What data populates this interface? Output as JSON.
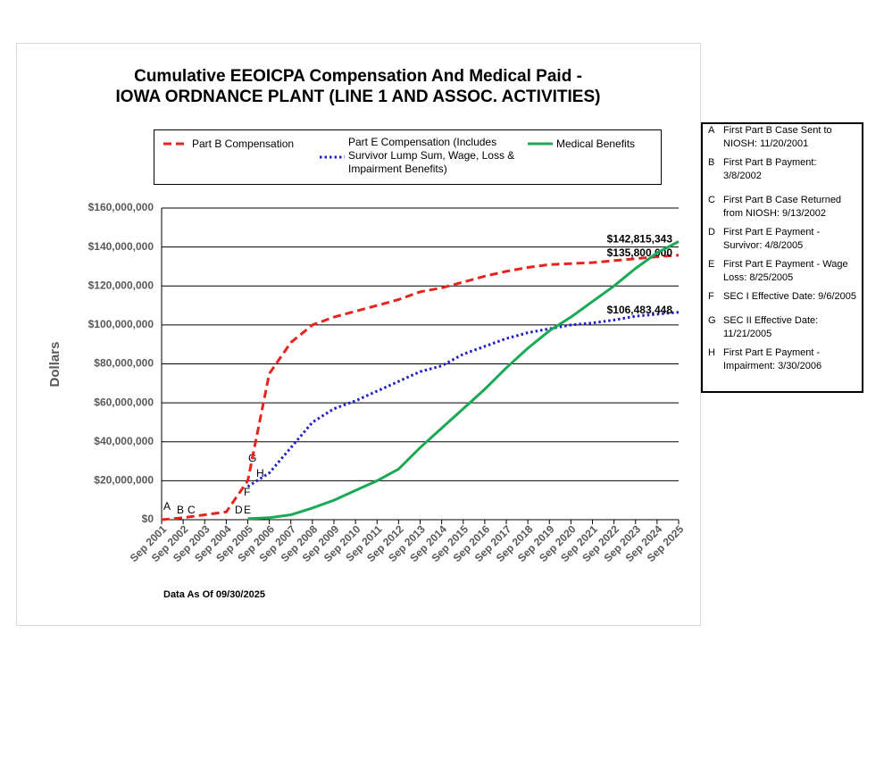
{
  "chart_data": {
    "type": "line",
    "title": "Cumulative EEOICPA Compensation And Medical Paid -",
    "subtitle": "IOWA ORDNANCE PLANT (LINE 1 AND ASSOC. ACTIVITIES)",
    "y_label": "Dollars",
    "footnote": "Data As Of  09/30/2025",
    "categories": [
      "Sep 2001",
      "Sep 2002",
      "Sep 2003",
      "Sep 2004",
      "Sep 2005",
      "Sep 2006",
      "Sep 2007",
      "Sep 2008",
      "Sep 2009",
      "Sep 2010",
      "Sep 2011",
      "Sep 2012",
      "Sep 2013",
      "Sep 2014",
      "Sep 2015",
      "Sep 2016",
      "Sep 2017",
      "Sep 2018",
      "Sep 2019",
      "Sep 2020",
      "Sep 2021",
      "Sep 2022",
      "Sep 2023",
      "Sep 2024",
      "Sep 2025"
    ],
    "ylim": [
      0,
      160000000
    ],
    "yticks": [
      {
        "value": 0,
        "label": "$0"
      },
      {
        "value": 20000000,
        "label": "$20,000,000"
      },
      {
        "value": 40000000,
        "label": "$40,000,000"
      },
      {
        "value": 60000000,
        "label": "$60,000,000"
      },
      {
        "value": 80000000,
        "label": "$80,000,000"
      },
      {
        "value": 100000000,
        "label": "$100,000,000"
      },
      {
        "value": 120000000,
        "label": "$120,000,000"
      },
      {
        "value": 140000000,
        "label": "$140,000,000"
      },
      {
        "value": 160000000,
        "label": "$160,000,000"
      }
    ],
    "grid": true,
    "series": [
      {
        "name": "Part B Compensation",
        "color": "#e8231d",
        "dash": "dashed",
        "values": [
          0,
          1000000,
          2500000,
          4000000,
          20000000,
          75000000,
          91000000,
          100000000,
          104000000,
          107000000,
          110000000,
          113000000,
          117000000,
          119000000,
          122000000,
          125000000,
          127500000,
          129500000,
          131000000,
          131500000,
          132000000,
          133000000,
          134000000,
          135000000,
          135800000
        ],
        "value_labels": [
          null,
          null,
          null,
          null,
          null,
          null,
          null,
          null,
          null,
          null,
          null,
          null,
          null,
          null,
          null,
          null,
          null,
          null,
          null,
          null,
          null,
          null,
          null,
          null,
          "$135,800,000"
        ]
      },
      {
        "name": "Part E Compensation (Includes Survivor Lump Sum, Wage, Loss & Impairment Benefits)",
        "color": "#1f1fc8",
        "dash": "dotted",
        "values": [
          null,
          null,
          null,
          null,
          17000000,
          24000000,
          37000000,
          50000000,
          57000000,
          61000000,
          66000000,
          71000000,
          76000000,
          79000000,
          85000000,
          89000000,
          93000000,
          96000000,
          98000000,
          100000000,
          101000000,
          102500000,
          104500000,
          105500000,
          106483448
        ],
        "value_labels": [
          null,
          null,
          null,
          null,
          null,
          null,
          null,
          null,
          null,
          null,
          null,
          null,
          null,
          null,
          null,
          null,
          null,
          null,
          null,
          null,
          null,
          null,
          null,
          null,
          "$106,483,448"
        ]
      },
      {
        "name": "Medical Benefits",
        "color": "#1aaa55",
        "dash": "solid",
        "values": [
          null,
          null,
          null,
          null,
          500000,
          1000000,
          2500000,
          6000000,
          10000000,
          15000000,
          20000000,
          26000000,
          37000000,
          47000000,
          57000000,
          67000000,
          78000000,
          88000000,
          97000000,
          104000000,
          112000000,
          120000000,
          129000000,
          137000000,
          142815343
        ],
        "value_labels": [
          null,
          null,
          null,
          null,
          null,
          null,
          null,
          null,
          null,
          null,
          null,
          null,
          null,
          null,
          null,
          null,
          null,
          null,
          null,
          null,
          null,
          null,
          null,
          null,
          "$142,815,343"
        ]
      }
    ],
    "events": [
      {
        "label": "A",
        "text": "First Part B Case Sent to NIOSH: 11/20/2001"
      },
      {
        "label": "B",
        "text": "First Part B Payment: 3/8/2002"
      },
      {
        "label": "C",
        "text": "First Part B Case Returned from NIOSH: 9/13/2002"
      },
      {
        "label": "D",
        "text": "First Part E Payment - Survivor: 4/8/2005"
      },
      {
        "label": "E",
        "text": "First Part E Payment - Wage Loss: 8/25/2005"
      },
      {
        "label": "F",
        "text": "SEC I Effective Date: 9/6/2005"
      },
      {
        "label": "G",
        "text": "SEC II Effective Date: 11/21/2005"
      },
      {
        "label": "H",
        "text": "First Part E Payment - Impairment: 3/30/2006"
      }
    ]
  }
}
